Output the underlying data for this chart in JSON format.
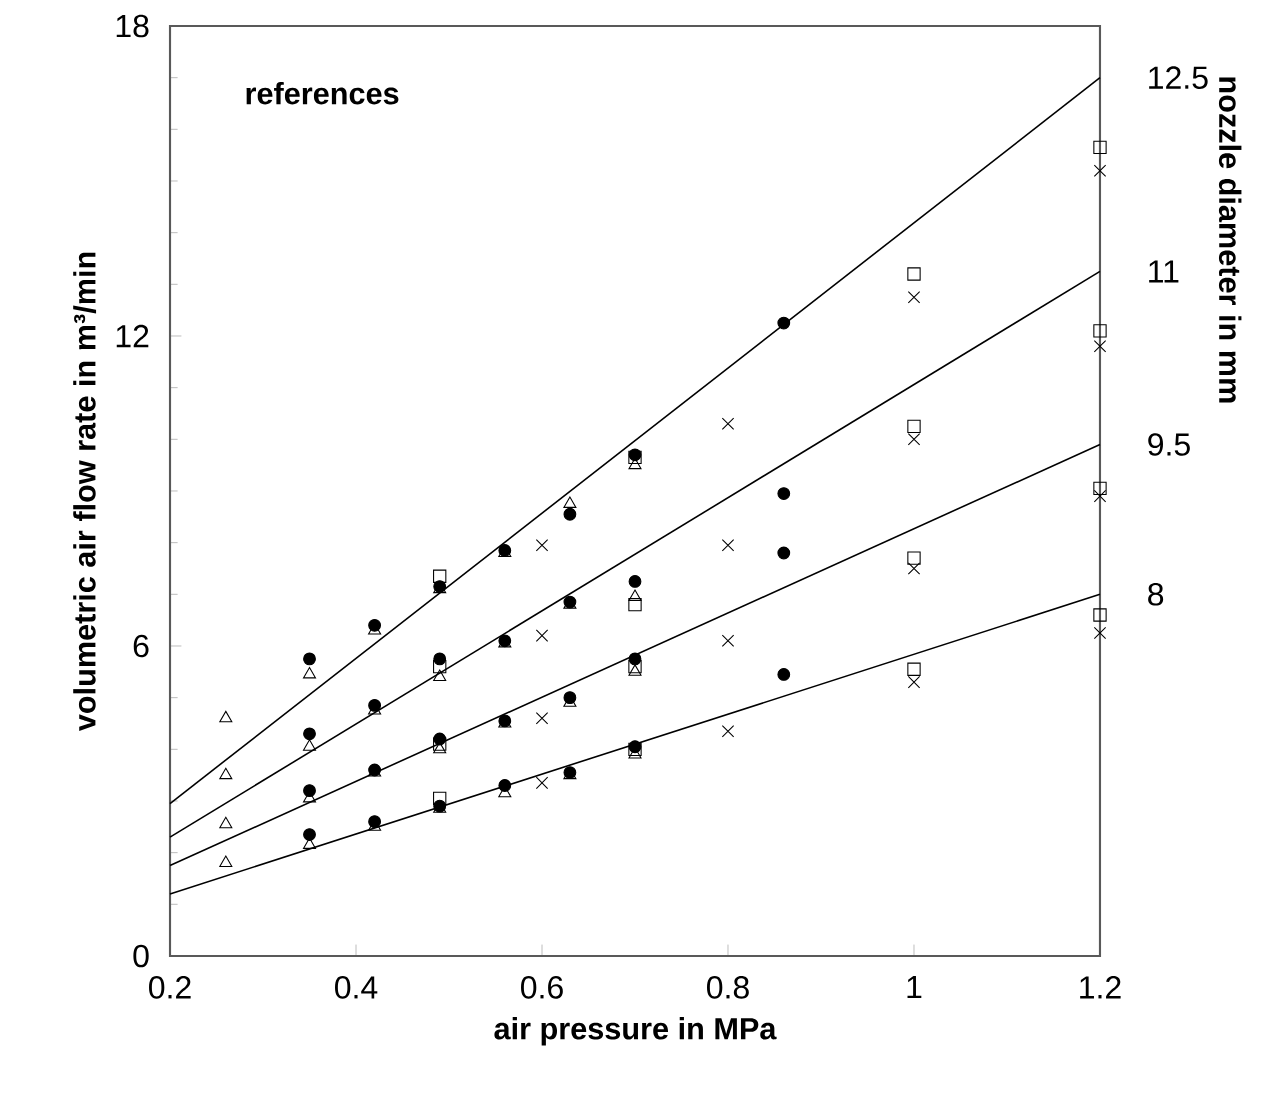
{
  "chart_data": {
    "type": "scatter",
    "xlabel": "air pressure in MPa",
    "ylabel": "volumetric air flow rate in m³/min",
    "y2label": "nozzle diameter in mm",
    "legend_title": "references",
    "xlim": [
      0.2,
      1.2
    ],
    "ylim": [
      0,
      18
    ],
    "xticks": [
      0.2,
      0.4,
      0.6,
      0.8,
      1,
      1.2
    ],
    "yticks": [
      0,
      6,
      12,
      18
    ],
    "series": [
      {
        "color": "#000000",
        "marker": "triangle",
        "x": [
          0.26,
          0.26,
          0.26,
          0.26,
          0.35,
          0.35,
          0.35,
          0.35,
          0.42,
          0.42,
          0.42,
          0.42,
          0.49,
          0.49,
          0.49,
          0.49,
          0.56,
          0.56,
          0.56,
          0.56,
          0.63,
          0.63,
          0.63,
          0.63,
          0.7,
          0.7,
          0.7,
          0.7
        ],
        "values": [
          4.6,
          3.5,
          2.55,
          1.8,
          5.45,
          4.05,
          3.05,
          2.15,
          6.3,
          4.75,
          3.55,
          2.5,
          7.1,
          5.4,
          4.0,
          2.85,
          7.8,
          6.05,
          4.5,
          3.15,
          8.75,
          6.8,
          4.9,
          3.5,
          9.5,
          6.95,
          5.5,
          3.9
        ]
      },
      {
        "color": "#000000",
        "marker": "cross",
        "x": [
          0.6,
          0.6,
          0.6,
          0.6,
          0.8,
          0.8,
          0.8,
          0.8,
          1,
          1,
          1,
          1,
          1.2,
          1.2,
          1.2,
          1.2
        ],
        "values": [
          7.95,
          6.2,
          4.6,
          3.35,
          10.3,
          7.95,
          6.1,
          4.35,
          12.75,
          10.0,
          7.5,
          5.3,
          15.2,
          11.8,
          8.9,
          6.25
        ]
      },
      {
        "color": "#000000",
        "marker": "square",
        "x": [
          0.49,
          0.49,
          0.49,
          0.49,
          0.7,
          0.7,
          0.7,
          0.7,
          1,
          1,
          1,
          1,
          1.2,
          1.2,
          1.2,
          1.2
        ],
        "values": [
          7.35,
          5.6,
          4.1,
          3.05,
          9.65,
          6.8,
          5.6,
          4.0,
          13.2,
          10.25,
          7.7,
          5.55,
          15.65,
          12.1,
          9.05,
          6.6
        ]
      },
      {
        "color": "#000000",
        "marker": "circle",
        "x": [
          0.35,
          0.35,
          0.35,
          0.35,
          0.42,
          0.42,
          0.42,
          0.42,
          0.49,
          0.49,
          0.49,
          0.49,
          0.56,
          0.56,
          0.56,
          0.56,
          0.63,
          0.63,
          0.63,
          0.63,
          0.7,
          0.7,
          0.7,
          0.7,
          0.86,
          0.86,
          0.86,
          0.86
        ],
        "values": [
          5.75,
          4.3,
          3.2,
          2.35,
          6.4,
          4.85,
          3.6,
          2.6,
          7.15,
          5.75,
          4.2,
          2.9,
          7.85,
          6.1,
          4.55,
          3.3,
          8.55,
          6.85,
          5.0,
          3.55,
          9.7,
          7.25,
          5.75,
          4.05,
          12.25,
          8.95,
          7.8,
          5.45
        ]
      },
      {
        "type": "line",
        "name": "12.5",
        "color": "#000000",
        "x": [
          0.2,
          1.2
        ],
        "values": [
          2.95,
          17.0
        ]
      },
      {
        "type": "line",
        "name": "11",
        "color": "#000000",
        "x": [
          0.2,
          1.2
        ],
        "values": [
          2.3,
          13.25
        ]
      },
      {
        "type": "line",
        "name": "9.5",
        "color": "#000000",
        "x": [
          0.2,
          1.2
        ],
        "values": [
          1.75,
          9.9
        ]
      },
      {
        "type": "line",
        "name": "8",
        "color": "#000000",
        "x": [
          0.2,
          1.2
        ],
        "values": [
          1.2,
          7.0
        ]
      }
    ]
  }
}
